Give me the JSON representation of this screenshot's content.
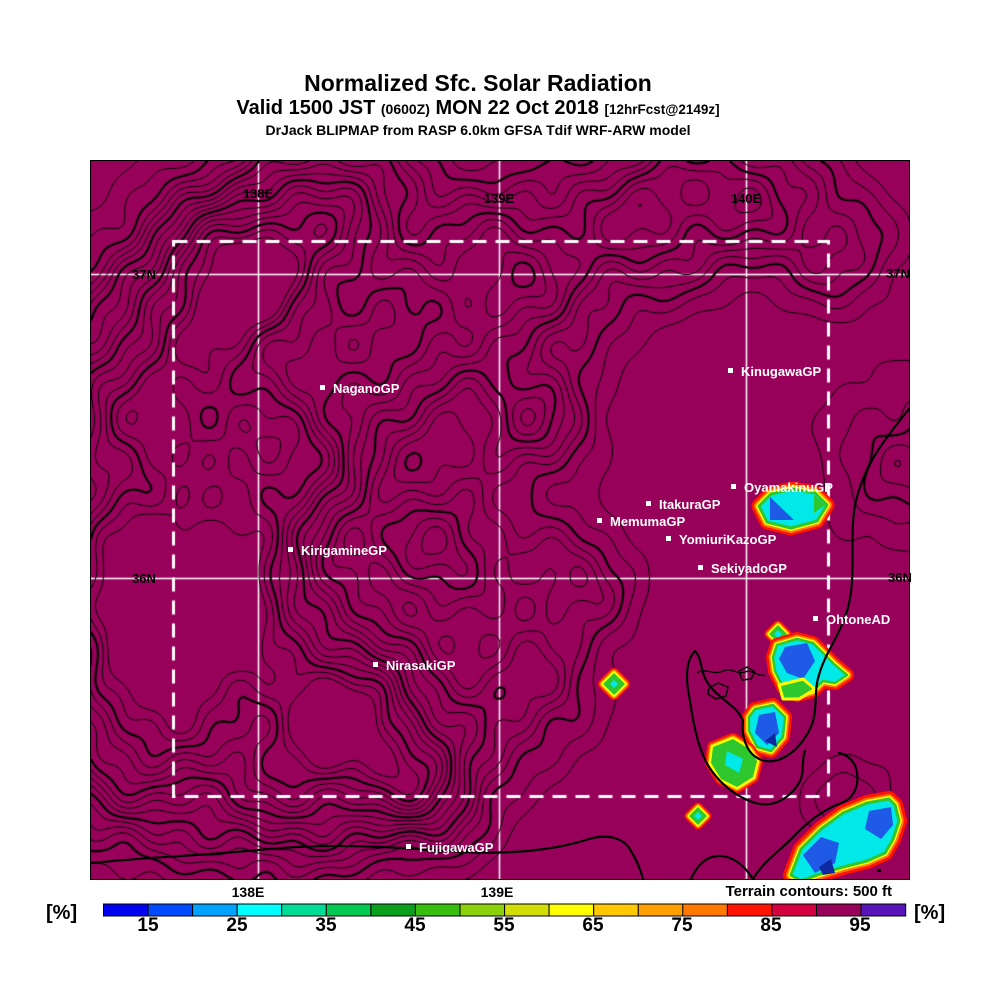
{
  "header": {
    "title": "Normalized Sfc. Solar Radiation",
    "valid_prefix": "Valid 1500 JST",
    "valid_zulu": "(0600Z)",
    "valid_date": "MON 22 Oct 2018",
    "valid_fcst": "[12hrFcst@2149z]",
    "model_line": "DrJack BLIPMAP from RASP 6.0km GFSA Tdif WRF-ARW model"
  },
  "map": {
    "field_fill_color": "#98015A",
    "contour_color": "#000000",
    "grid_color": "#FFFFFF",
    "terrain_note": "Terrain contours: 500 ft",
    "top_axis_labels": [
      {
        "text": "138E"
      },
      {
        "text": "139E"
      },
      {
        "text": "140E"
      }
    ],
    "bottom_axis_labels": [
      {
        "text": "138E"
      },
      {
        "text": "139E"
      }
    ],
    "left_axis_labels": [
      {
        "text": "37N"
      },
      {
        "text": "36N"
      }
    ],
    "right_axis_labels": [
      {
        "text": "37N"
      },
      {
        "text": "36N"
      }
    ],
    "stations": [
      {
        "name": "NaganoGP"
      },
      {
        "name": "KinugawaGP"
      },
      {
        "name": "OyamakinuGP"
      },
      {
        "name": "ItakuraGP"
      },
      {
        "name": "MemumaGP"
      },
      {
        "name": "YomiuriKazoGP"
      },
      {
        "name": "SekiyadoGP"
      },
      {
        "name": "OhtoneAD"
      },
      {
        "name": "KirigamineGP"
      },
      {
        "name": "NirasakiGP"
      },
      {
        "name": "FujigawaGP"
      }
    ]
  },
  "colorbar": {
    "unit_left": "[%]",
    "unit_right": "[%]",
    "tick_labels": [
      "15",
      "25",
      "35",
      "45",
      "55",
      "65",
      "75",
      "85",
      "95"
    ],
    "range_min": 10,
    "range_max": 100,
    "step_percent": 5,
    "colors": [
      "#0000F0",
      "#004BFF",
      "#00A2FF",
      "#00FFFF",
      "#00DC96",
      "#00C850",
      "#0AA01E",
      "#37BE0F",
      "#8CD20A",
      "#D2DC05",
      "#FFFF00",
      "#FFC800",
      "#FFA000",
      "#FF7800",
      "#FF1400",
      "#D40040",
      "#98015A",
      "#5814B8"
    ]
  }
}
